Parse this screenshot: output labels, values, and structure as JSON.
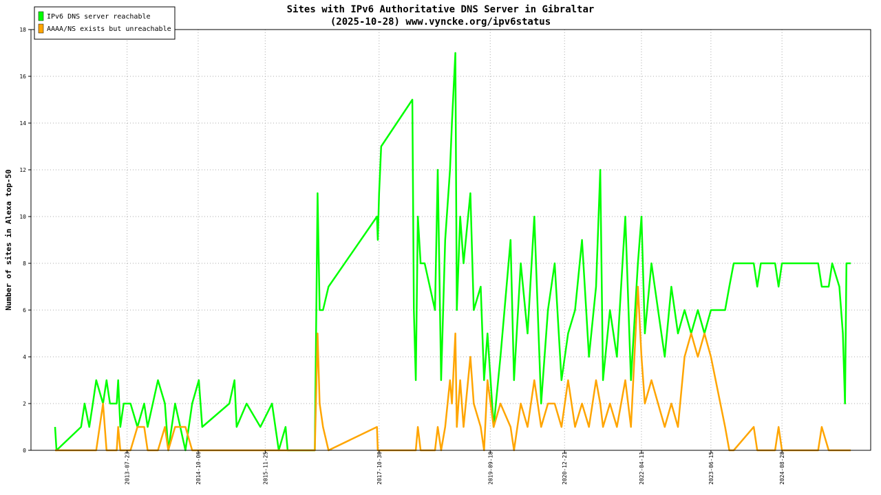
{
  "chart_data": {
    "type": "line",
    "title": "Sites with IPv6 Authoritative DNS Server in Gibraltar",
    "subtitle": "(2025-10-28) www.vyncke.org/ipv6status",
    "y_label": "Number of sites in Alexa top-50",
    "x": [
      "2012-05-03",
      "2012-05-12",
      "2012-10-11",
      "2012-11-02",
      "2012-12-01",
      "2012-12-23",
      "2013-01-13",
      "2013-02-24",
      "2013-03-18",
      "2013-04-08",
      "2013-05-20",
      "2013-05-29",
      "2013-06-11",
      "2013-07-02",
      "2013-08-13",
      "2013-09-25",
      "2013-11-06",
      "2013-11-27",
      "2014-01-30",
      "2014-03-14",
      "2014-04-04",
      "2014-05-16",
      "2014-07-19",
      "2014-08-30",
      "2014-10-10",
      "2014-10-31",
      "2015-04-17",
      "2015-05-19",
      "2015-06-01",
      "2015-08-02",
      "2015-10-26",
      "2016-01-06",
      "2016-02-17",
      "2016-03-30",
      "2016-04-12",
      "2016-09-27",
      "2016-10-14",
      "2016-10-27",
      "2016-11-17",
      "2016-12-21",
      "2017-10-17",
      "2017-10-22",
      "2017-10-30",
      "2017-11-12",
      "2018-05-24",
      "2018-06-02",
      "2018-06-14",
      "2018-06-27",
      "2018-07-14",
      "2018-08-08",
      "2018-10-11",
      "2018-10-28",
      "2018-11-18",
      "2018-12-13",
      "2019-01-12",
      "2019-01-24",
      "2019-02-14",
      "2019-02-23",
      "2019-03-16",
      "2019-04-06",
      "2019-05-18",
      "2019-06-08",
      "2019-07-21",
      "2019-08-11",
      "2019-09-01",
      "2019-10-09",
      "2019-11-20",
      "2020-01-22",
      "2020-02-12",
      "2020-03-25",
      "2020-05-06",
      "2020-06-17",
      "2020-07-29",
      "2020-09-09",
      "2020-10-21",
      "2020-12-02",
      "2021-01-12",
      "2021-02-24",
      "2021-04-08",
      "2021-05-21",
      "2021-07-04",
      "2021-07-30",
      "2021-08-16",
      "2021-09-28",
      "2021-11-10",
      "2022-01-01",
      "2022-02-05",
      "2022-03-20",
      "2022-04-11",
      "2022-05-02",
      "2022-06-12",
      "2022-07-23",
      "2022-09-02",
      "2022-10-13",
      "2022-11-23",
      "2023-01-03",
      "2023-02-13",
      "2023-03-26",
      "2023-05-06",
      "2023-06-15",
      "2023-09-11",
      "2023-10-07",
      "2023-11-03",
      "2024-03-06",
      "2024-03-28",
      "2024-04-19",
      "2024-07-16",
      "2024-08-07",
      "2024-08-28",
      "2025-04-09",
      "2025-05-01",
      "2025-06-13",
      "2025-07-05",
      "2025-08-18",
      "2025-09-09",
      "2025-09-22",
      "2025-10-01",
      "2025-10-28"
    ],
    "series": [
      {
        "name": "IPv6 DNS server reachable",
        "color": "#00ff00",
        "values": [
          1,
          0,
          1,
          2,
          1,
          2,
          3,
          2,
          3,
          2,
          2,
          3,
          1,
          2,
          2,
          1,
          2,
          1,
          3,
          2,
          0,
          2,
          0,
          2,
          3,
          1,
          2,
          3,
          1,
          2,
          1,
          2,
          0,
          1,
          0,
          0,
          11,
          6,
          6,
          7,
          10,
          9,
          11,
          13,
          15,
          6,
          3,
          10,
          8,
          8,
          6,
          12,
          3,
          9,
          12,
          14,
          17,
          6,
          10,
          8,
          11,
          6,
          7,
          3,
          5,
          1,
          4,
          9,
          3,
          8,
          5,
          10,
          2,
          6,
          8,
          3,
          5,
          6,
          9,
          4,
          7,
          12,
          3,
          6,
          4,
          10,
          3,
          8,
          10,
          5,
          8,
          6,
          4,
          7,
          5,
          6,
          5,
          6,
          5,
          6,
          6,
          7,
          8,
          8,
          7,
          8,
          8,
          7,
          8,
          8,
          7,
          7,
          8,
          7,
          5,
          2,
          8,
          8
        ]
      },
      {
        "name": "AAAA/NS exists but unreachable",
        "color": "#ffa500",
        "values": [
          0,
          0,
          0,
          0,
          0,
          0,
          0,
          2,
          0,
          0,
          0,
          1,
          0,
          0,
          0,
          1,
          1,
          0,
          0,
          1,
          0,
          1,
          1,
          0,
          0,
          0,
          0,
          0,
          0,
          0,
          0,
          0,
          0,
          0,
          0,
          0,
          5,
          2,
          1,
          0,
          1,
          0,
          0,
          0,
          0,
          0,
          0,
          1,
          0,
          0,
          0,
          1,
          0,
          1,
          3,
          2,
          5,
          1,
          3,
          1,
          4,
          2,
          1,
          0,
          3,
          1,
          2,
          1,
          0,
          2,
          1,
          3,
          1,
          2,
          2,
          1,
          3,
          1,
          2,
          1,
          3,
          2,
          1,
          2,
          1,
          3,
          1,
          7,
          4,
          2,
          3,
          2,
          1,
          2,
          1,
          4,
          5,
          4,
          5,
          4,
          1,
          0,
          0,
          1,
          0,
          0,
          0,
          1,
          0,
          0,
          1,
          0,
          0,
          0,
          0,
          0,
          0,
          0
        ]
      }
    ],
    "xlim": [
      "2011-12-06",
      "2026-02-28"
    ],
    "xticks": [
      "2013-07-23",
      "2014-10-06",
      "2015-11-25",
      "2017-10-30",
      "2019-09-18",
      "2020-12-21",
      "2022-04-11",
      "2023-06-15",
      "2024-08-28"
    ],
    "ylim": [
      0,
      18
    ],
    "yticks": [
      0,
      2,
      4,
      6,
      8,
      10,
      12,
      14,
      16,
      18
    ],
    "grid": true,
    "legend": "top-left"
  }
}
